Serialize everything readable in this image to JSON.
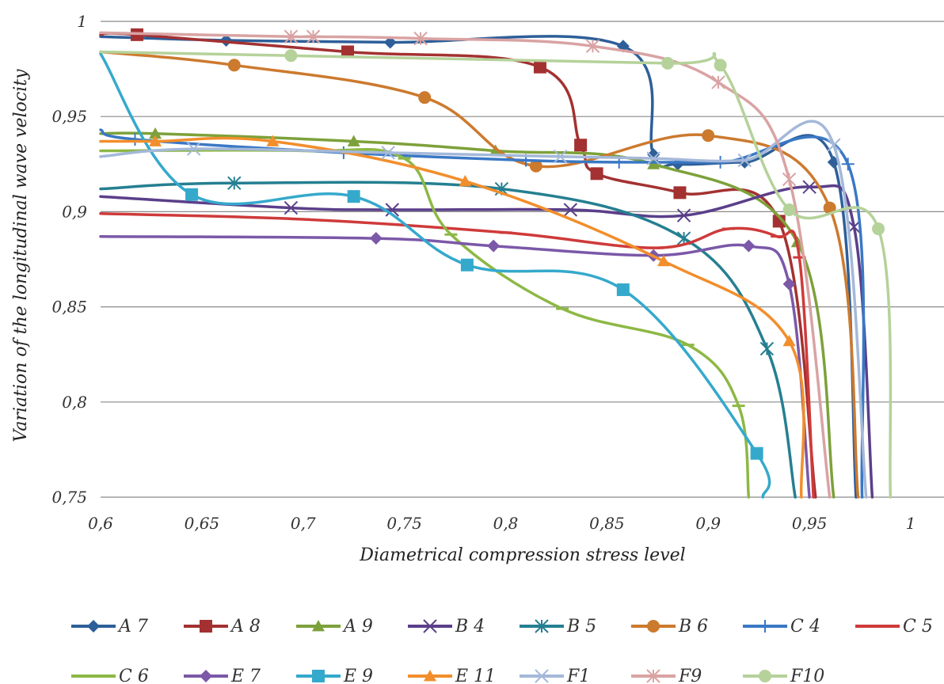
{
  "chart_data": {
    "type": "line",
    "title": "",
    "xlabel": "Diametrical compression stress level",
    "ylabel": "Variation of the longitudinal wave velocity",
    "xlim": [
      0.6,
      1.0
    ],
    "ylim": [
      0.75,
      1.0
    ],
    "xticks": [
      0.6,
      0.65,
      0.7,
      0.75,
      0.8,
      0.85,
      0.9,
      0.95,
      1.0
    ],
    "xtick_labels": [
      "0,6",
      "0,65",
      "0,7",
      "0,75",
      "0,8",
      "0,85",
      "0,9",
      "0,95",
      "1"
    ],
    "yticks": [
      0.75,
      0.8,
      0.85,
      0.9,
      0.95,
      1.0
    ],
    "ytick_labels": [
      "0,75",
      "0,8",
      "0,85",
      "0,9",
      "0,95",
      "1"
    ],
    "grid": "horizontal",
    "legend_position": "bottom",
    "series": [
      {
        "name": "A 7",
        "color": "#2e5f99",
        "marker": "diamond",
        "x": [
          0.6,
          0.662,
          0.743,
          0.858,
          0.873,
          0.885,
          0.918,
          0.962,
          0.973
        ],
        "y": [
          0.992,
          0.99,
          0.989,
          0.987,
          0.93,
          0.925,
          0.926,
          0.926,
          0.75
        ]
      },
      {
        "name": "A 8",
        "color": "#a33131",
        "marker": "square",
        "x": [
          0.6,
          0.618,
          0.722,
          0.817,
          0.837,
          0.845,
          0.886,
          0.935,
          0.953
        ],
        "y": [
          0.993,
          0.993,
          0.984,
          0.976,
          0.935,
          0.92,
          0.91,
          0.895,
          0.75
        ]
      },
      {
        "name": "A 9",
        "color": "#7da13a",
        "marker": "triangle",
        "x": [
          0.6,
          0.627,
          0.725,
          0.795,
          0.873,
          0.944,
          0.962
        ],
        "y": [
          0.941,
          0.941,
          0.937,
          0.932,
          0.925,
          0.884,
          0.75
        ]
      },
      {
        "name": "B 4",
        "color": "#5b3f8a",
        "marker": "x",
        "x": [
          0.6,
          0.694,
          0.744,
          0.832,
          0.888,
          0.95,
          0.972,
          0.981
        ],
        "y": [
          0.908,
          0.902,
          0.901,
          0.901,
          0.898,
          0.913,
          0.892,
          0.75
        ]
      },
      {
        "name": "B 5",
        "color": "#257f91",
        "marker": "asterisk",
        "x": [
          0.6,
          0.666,
          0.798,
          0.888,
          0.929,
          0.943
        ],
        "y": [
          0.912,
          0.915,
          0.912,
          0.886,
          0.828,
          0.75
        ]
      },
      {
        "name": "B 6",
        "color": "#cc7a2e",
        "marker": "circle",
        "x": [
          0.6,
          0.666,
          0.76,
          0.815,
          0.9,
          0.96,
          0.974
        ],
        "y": [
          0.984,
          0.977,
          0.96,
          0.924,
          0.94,
          0.902,
          0.75
        ]
      },
      {
        "name": "C 4",
        "color": "#3a78c4",
        "marker": "plus",
        "x": [
          0.6,
          0.617,
          0.72,
          0.81,
          0.856,
          0.906,
          0.969,
          0.976
        ],
        "y": [
          0.943,
          0.938,
          0.931,
          0.927,
          0.926,
          0.926,
          0.925,
          0.75
        ]
      },
      {
        "name": "C 5",
        "color": "#cf3a3a",
        "marker": "dash",
        "x": [
          0.6,
          0.7,
          0.8,
          0.875,
          0.91,
          0.934,
          0.945,
          0.952
        ],
        "y": [
          0.899,
          0.896,
          0.889,
          0.881,
          0.891,
          0.887,
          0.876,
          0.75
        ]
      },
      {
        "name": "C 6",
        "color": "#8db845",
        "marker": "dash",
        "x": [
          0.6,
          0.7,
          0.75,
          0.773,
          0.828,
          0.89,
          0.915,
          0.92
        ],
        "y": [
          0.932,
          0.932,
          0.928,
          0.888,
          0.849,
          0.83,
          0.798,
          0.75
        ]
      },
      {
        "name": "E 7",
        "color": "#7b58a8",
        "marker": "diamond",
        "x": [
          0.6,
          0.736,
          0.794,
          0.873,
          0.92,
          0.94,
          0.95
        ],
        "y": [
          0.887,
          0.886,
          0.882,
          0.877,
          0.882,
          0.862,
          0.75
        ]
      },
      {
        "name": "E 9",
        "color": "#35a9cc",
        "marker": "square",
        "x": [
          0.6,
          0.645,
          0.725,
          0.781,
          0.858,
          0.924,
          0.927
        ],
        "y": [
          0.983,
          0.909,
          0.908,
          0.872,
          0.859,
          0.773,
          0.75
        ]
      },
      {
        "name": "E 11",
        "color": "#f28e2c",
        "marker": "triangle",
        "x": [
          0.6,
          0.627,
          0.685,
          0.78,
          0.878,
          0.94,
          0.946
        ],
        "y": [
          0.937,
          0.937,
          0.937,
          0.916,
          0.874,
          0.832,
          0.75
        ]
      },
      {
        "name": "F1",
        "color": "#a4b8d9",
        "marker": "x",
        "x": [
          0.6,
          0.646,
          0.742,
          0.827,
          0.873,
          0.918,
          0.962,
          0.978
        ],
        "y": [
          0.929,
          0.933,
          0.931,
          0.929,
          0.928,
          0.927,
          0.935,
          0.75
        ]
      },
      {
        "name": "F9",
        "color": "#d9a3a3",
        "marker": "asterisk",
        "x": [
          0.6,
          0.694,
          0.705,
          0.758,
          0.843,
          0.905,
          0.94,
          0.96
        ],
        "y": [
          0.994,
          0.992,
          0.992,
          0.991,
          0.987,
          0.968,
          0.917,
          0.75
        ]
      },
      {
        "name": "F10",
        "color": "#b5d29a",
        "marker": "circle",
        "x": [
          0.6,
          0.694,
          0.88,
          0.906,
          0.94,
          0.984,
          0.99
        ],
        "y": [
          0.984,
          0.982,
          0.978,
          0.977,
          0.901,
          0.891,
          0.75
        ]
      }
    ]
  }
}
